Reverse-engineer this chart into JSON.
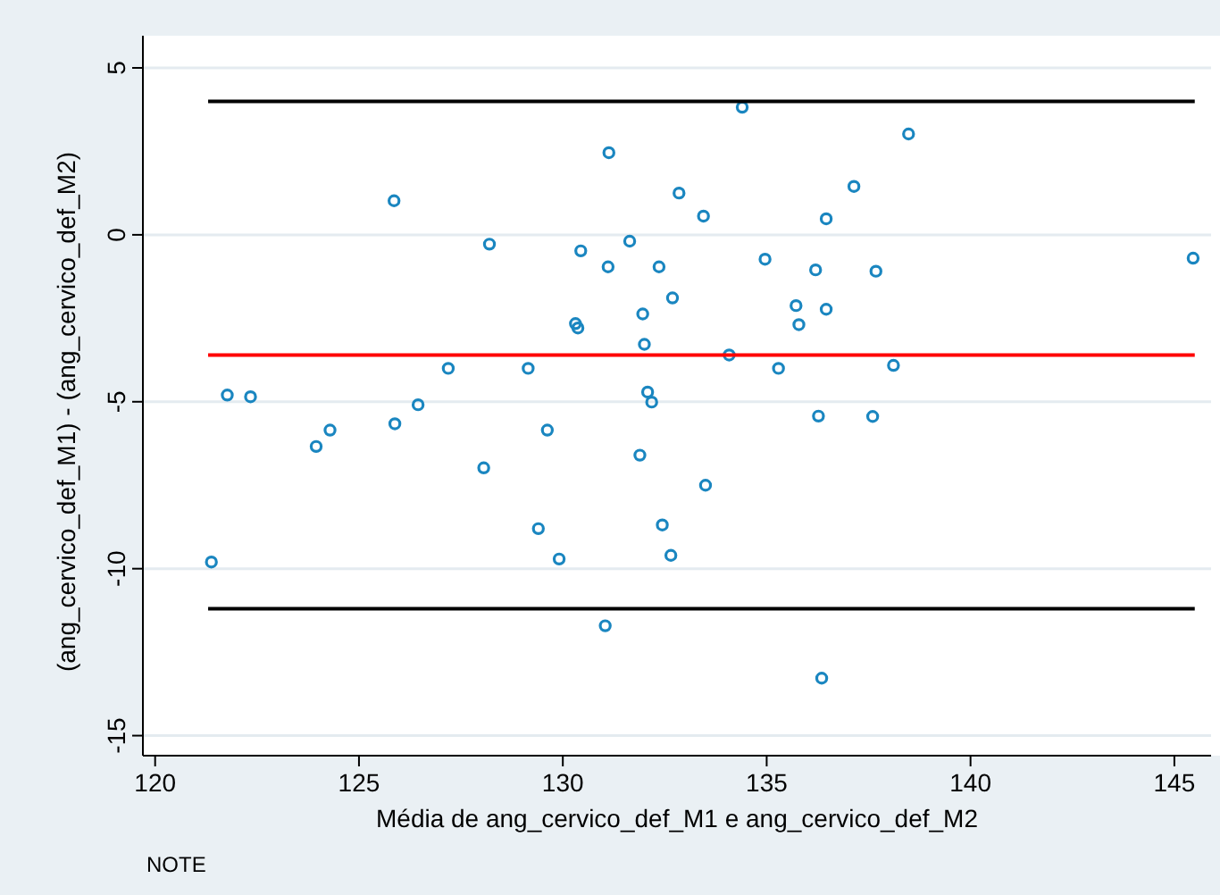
{
  "chart_data": {
    "type": "scatter",
    "xlabel": "Média de ang_cervico_def_M1 e ang_cervico_def_M2",
    "ylabel": "(ang_cervico_def_M1) - (ang_cervico_def_M2)",
    "annotations": [
      "NOTE"
    ],
    "xlim": [
      119.7,
      145.9
    ],
    "ylim": [
      -15.6,
      5
    ],
    "xticks": [
      120,
      125,
      130,
      135,
      140,
      145
    ],
    "yticks": [
      -15,
      -10,
      -5,
      0,
      5
    ],
    "grid": "y",
    "marker": "circle",
    "series": [
      {
        "color": "#1a86c0",
        "x": [
          131.13,
          125.86,
          128.2,
          130.44,
          131.64,
          131.11,
          132.36,
          132.69,
          131.96,
          130.31,
          130.37,
          132.0,
          127.19,
          129.15,
          121.77,
          122.34,
          132.08,
          132.18,
          134.4,
          138.48,
          132.85,
          133.45,
          137.14,
          136.46,
          134.96,
          136.2,
          137.68,
          145.46,
          135.72,
          136.46,
          135.79,
          134.08,
          135.29,
          138.11,
          123.95,
          124.29,
          125.88,
          126.45,
          128.06,
          129.62,
          131.89,
          129.4,
          129.91,
          132.44,
          132.65,
          121.38,
          131.04,
          136.27,
          137.6,
          133.5,
          136.35
        ],
        "values": [
          2.46,
          1.02,
          -0.28,
          -0.48,
          -0.19,
          -0.96,
          -0.96,
          -1.89,
          -2.37,
          -2.66,
          -2.79,
          -3.28,
          -4.0,
          -4.0,
          -4.8,
          -4.85,
          -4.71,
          -5.01,
          3.82,
          3.02,
          1.25,
          0.56,
          1.45,
          0.48,
          -0.73,
          -1.05,
          -1.09,
          -0.7,
          -2.12,
          -2.23,
          -2.69,
          -3.6,
          -4.0,
          -3.91,
          -6.34,
          -5.85,
          -5.66,
          -5.09,
          -6.98,
          -5.85,
          -6.6,
          -8.8,
          -9.71,
          -8.69,
          -9.6,
          -9.8,
          -11.71,
          -5.43,
          -5.44,
          -7.5,
          -13.28
        ]
      },
      {
        "type": "line",
        "marker": "none",
        "color": "#000000",
        "x": [
          121.3,
          145.5
        ],
        "values": [
          4.0,
          4.0
        ]
      },
      {
        "type": "line",
        "marker": "none",
        "color": "#ff0000",
        "x": [
          121.3,
          145.5
        ],
        "values": [
          -3.6,
          -3.6
        ]
      },
      {
        "type": "line",
        "marker": "none",
        "color": "#000000",
        "x": [
          121.3,
          145.5
        ],
        "values": [
          -11.2,
          -11.2
        ]
      }
    ]
  }
}
